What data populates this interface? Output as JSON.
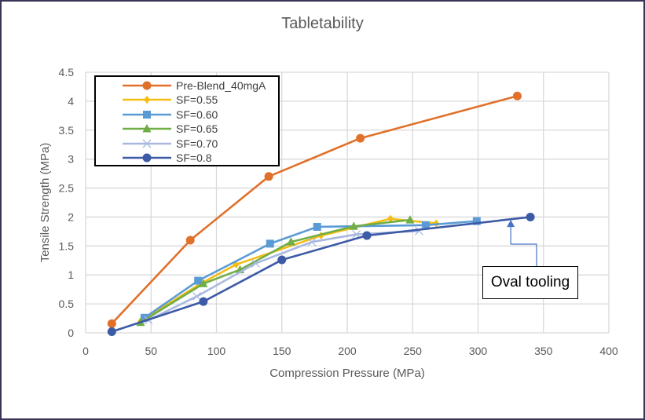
{
  "chart_data": {
    "type": "line",
    "title": "Tabletability",
    "xlabel": "Compression Pressure (MPa)",
    "ylabel": "Tensile Strength (MPa)",
    "xlim": [
      0,
      400
    ],
    "ylim": [
      0,
      4.5
    ],
    "xticks": [
      "0",
      "50",
      "100",
      "150",
      "200",
      "250",
      "300",
      "350",
      "400"
    ],
    "yticks": [
      "0",
      "0.5",
      "1",
      "1.5",
      "2",
      "2.5",
      "3",
      "3.5",
      "4",
      "4.5"
    ],
    "grid": true,
    "legend_position": "top-left",
    "series": [
      {
        "name": "Pre-Blend_40mgA",
        "color": "#e0702a",
        "marker": "circle",
        "x": [
          20,
          80,
          140,
          210,
          330
        ],
        "y": [
          0.16,
          1.6,
          2.7,
          3.36,
          4.09
        ]
      },
      {
        "name": "SF=0.55",
        "color": "#f5bd12",
        "marker": "diamond",
        "x": [
          42,
          88,
          115,
          180,
          233,
          268
        ],
        "y": [
          0.2,
          0.85,
          1.18,
          1.68,
          1.97,
          1.89
        ]
      },
      {
        "name": "SF=0.60",
        "color": "#5b9bd5",
        "marker": "square",
        "x": [
          45,
          86,
          141,
          177,
          260,
          299
        ],
        "y": [
          0.26,
          0.9,
          1.54,
          1.83,
          1.86,
          1.93
        ]
      },
      {
        "name": "SF=0.65",
        "color": "#70ad47",
        "marker": "triangle",
        "x": [
          42,
          90,
          118,
          157,
          205,
          248
        ],
        "y": [
          0.18,
          0.85,
          1.09,
          1.57,
          1.84,
          1.95
        ]
      },
      {
        "name": "SF=0.70",
        "color": "#a9b8e0",
        "marker": "x",
        "x": [
          48,
          85,
          130,
          173,
          207,
          255
        ],
        "y": [
          0.22,
          0.63,
          1.2,
          1.57,
          1.7,
          1.76
        ]
      },
      {
        "name": "SF=0.8",
        "color": "#3c5aa6",
        "marker": "circle",
        "x": [
          20,
          90,
          150,
          215,
          340
        ],
        "y": [
          0.02,
          0.54,
          1.26,
          1.68,
          2.0
        ]
      }
    ],
    "annotations": [
      {
        "text": "Oval tooling",
        "arrow_to": {
          "x": 325,
          "y": 1.95
        }
      }
    ]
  }
}
